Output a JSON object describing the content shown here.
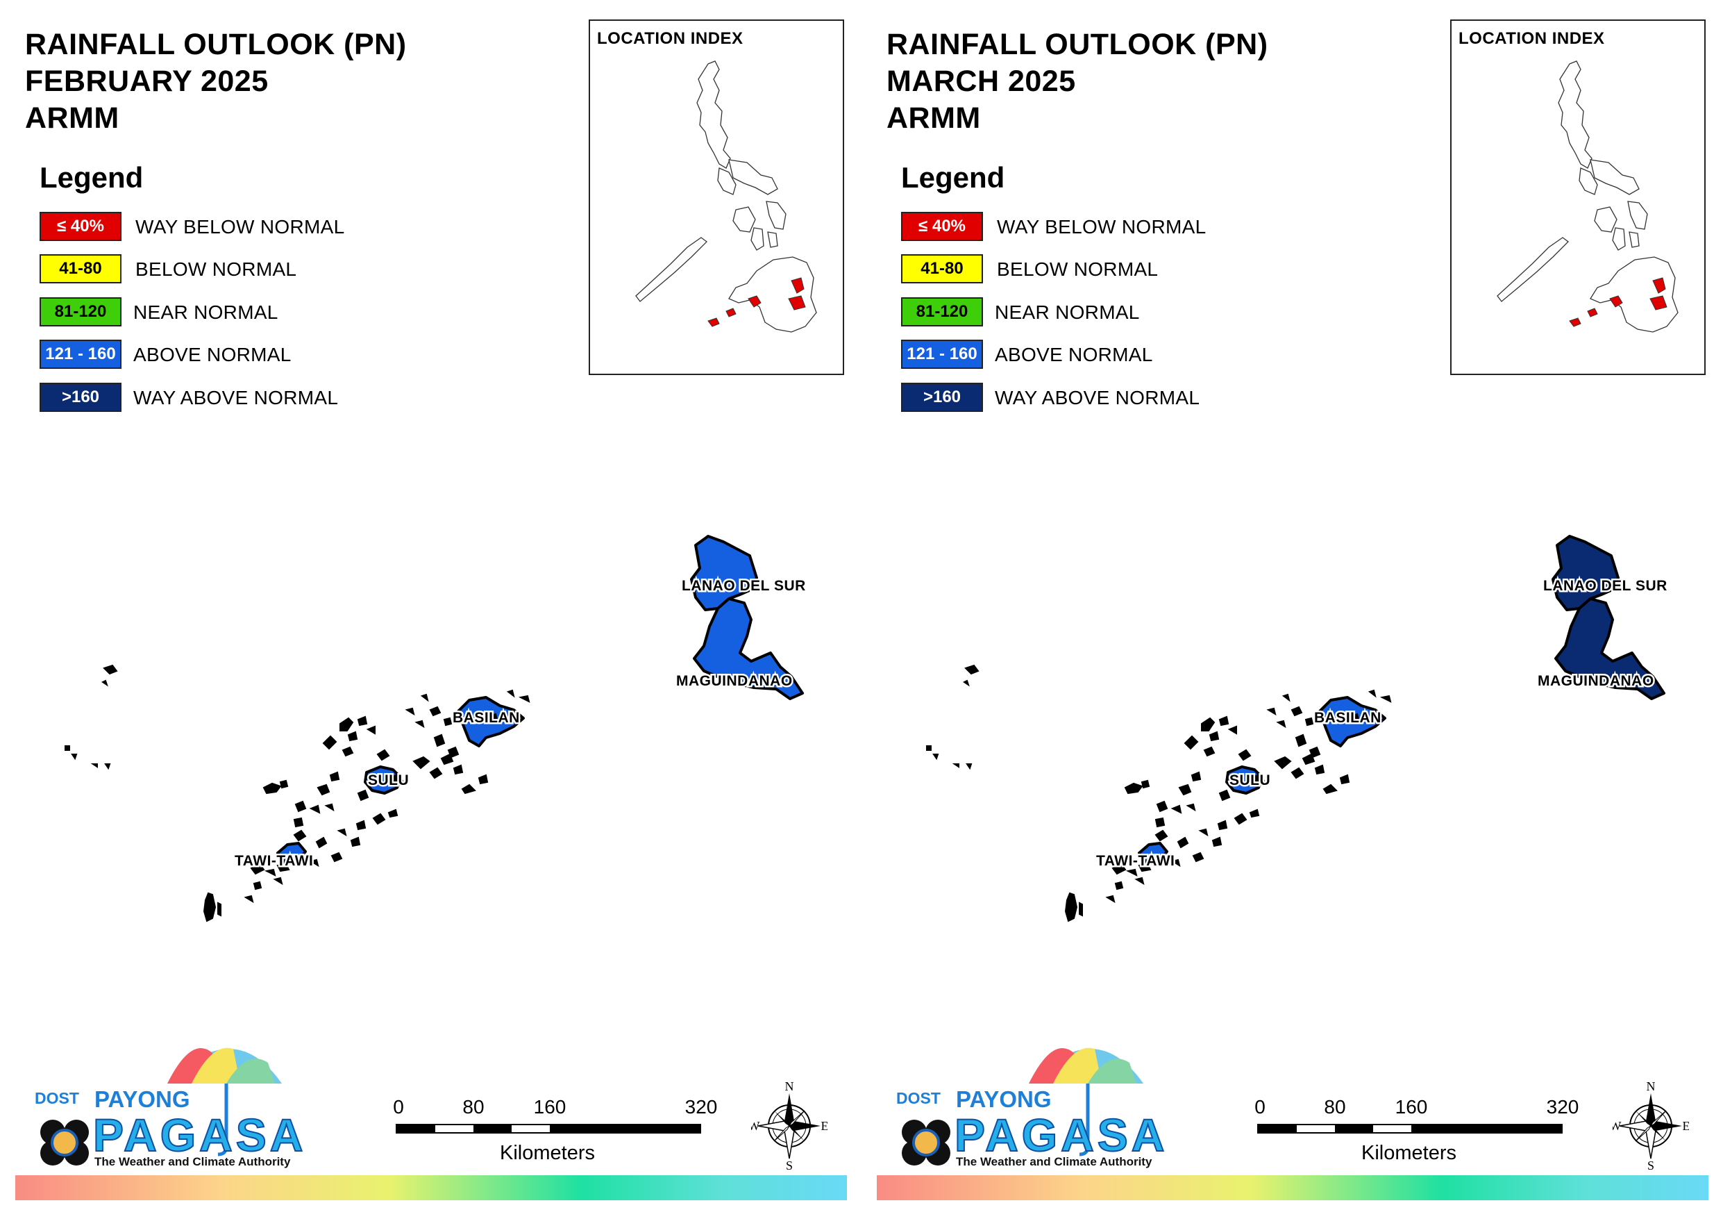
{
  "panels": [
    {
      "id": "feb",
      "title_lines": [
        "RAINFALL OUTLOOK (PN)",
        "FEBRUARY 2025",
        "ARMM"
      ],
      "legend_heading": "Legend",
      "legend": [
        {
          "range": "≤ 40%",
          "label": "WAY BELOW NORMAL",
          "color": "#e00000"
        },
        {
          "range": "41-80",
          "label": "BELOW NORMAL",
          "color": "#ffff00"
        },
        {
          "range": "81-120",
          "label": "NEAR NORMAL",
          "color": "#3fce0a"
        },
        {
          "range": "121 - 160",
          "label": "ABOVE NORMAL",
          "color": "#1560e0"
        },
        {
          "range": ">160",
          "label": "WAY ABOVE NORMAL",
          "color": "#0a2a72"
        }
      ],
      "inset_title": "LOCATION INDEX",
      "provinces": [
        {
          "name": "LANAO DEL SUR",
          "category": "ABOVE NORMAL"
        },
        {
          "name": "MAGUINDANAO",
          "category": "ABOVE NORMAL"
        },
        {
          "name": "BASILAN",
          "category": "ABOVE NORMAL"
        },
        {
          "name": "SULU",
          "category": "ABOVE NORMAL"
        },
        {
          "name": "TAWI-TAWI",
          "category": "ABOVE NORMAL"
        }
      ],
      "scale": {
        "ticks": [
          "0",
          "80",
          "160",
          "320"
        ],
        "unit": "Kilometers"
      },
      "compass": {
        "n": "N",
        "e": "E",
        "s": "S",
        "w": "W"
      },
      "logo": {
        "dost": "DOST",
        "payong": "PAYONG",
        "pagasa": "PAGASA",
        "tagline": "The Weather and Climate Authority"
      }
    },
    {
      "id": "mar",
      "title_lines": [
        "RAINFALL OUTLOOK (PN)",
        "MARCH 2025",
        "ARMM"
      ],
      "legend_heading": "Legend",
      "legend": [
        {
          "range": "≤ 40%",
          "label": "WAY BELOW NORMAL",
          "color": "#e00000"
        },
        {
          "range": "41-80",
          "label": "BELOW NORMAL",
          "color": "#ffff00"
        },
        {
          "range": "81-120",
          "label": "NEAR NORMAL",
          "color": "#3fce0a"
        },
        {
          "range": "121 - 160",
          "label": "ABOVE NORMAL",
          "color": "#1560e0"
        },
        {
          "range": ">160",
          "label": "WAY ABOVE NORMAL",
          "color": "#0a2a72"
        }
      ],
      "inset_title": "LOCATION INDEX",
      "provinces": [
        {
          "name": "LANAO DEL SUR",
          "category": "WAY ABOVE NORMAL"
        },
        {
          "name": "MAGUINDANAO",
          "category": "WAY ABOVE NORMAL"
        },
        {
          "name": "BASILAN",
          "category": "ABOVE NORMAL"
        },
        {
          "name": "SULU",
          "category": "ABOVE NORMAL"
        },
        {
          "name": "TAWI-TAWI",
          "category": "ABOVE NORMAL"
        }
      ],
      "scale": {
        "ticks": [
          "0",
          "80",
          "160",
          "320"
        ],
        "unit": "Kilometers"
      },
      "compass": {
        "n": "N",
        "e": "E",
        "s": "S",
        "w": "W"
      },
      "logo": {
        "dost": "DOST",
        "payong": "PAYONG",
        "pagasa": "PAGASA",
        "tagline": "The Weather and Climate Authority"
      }
    }
  ]
}
